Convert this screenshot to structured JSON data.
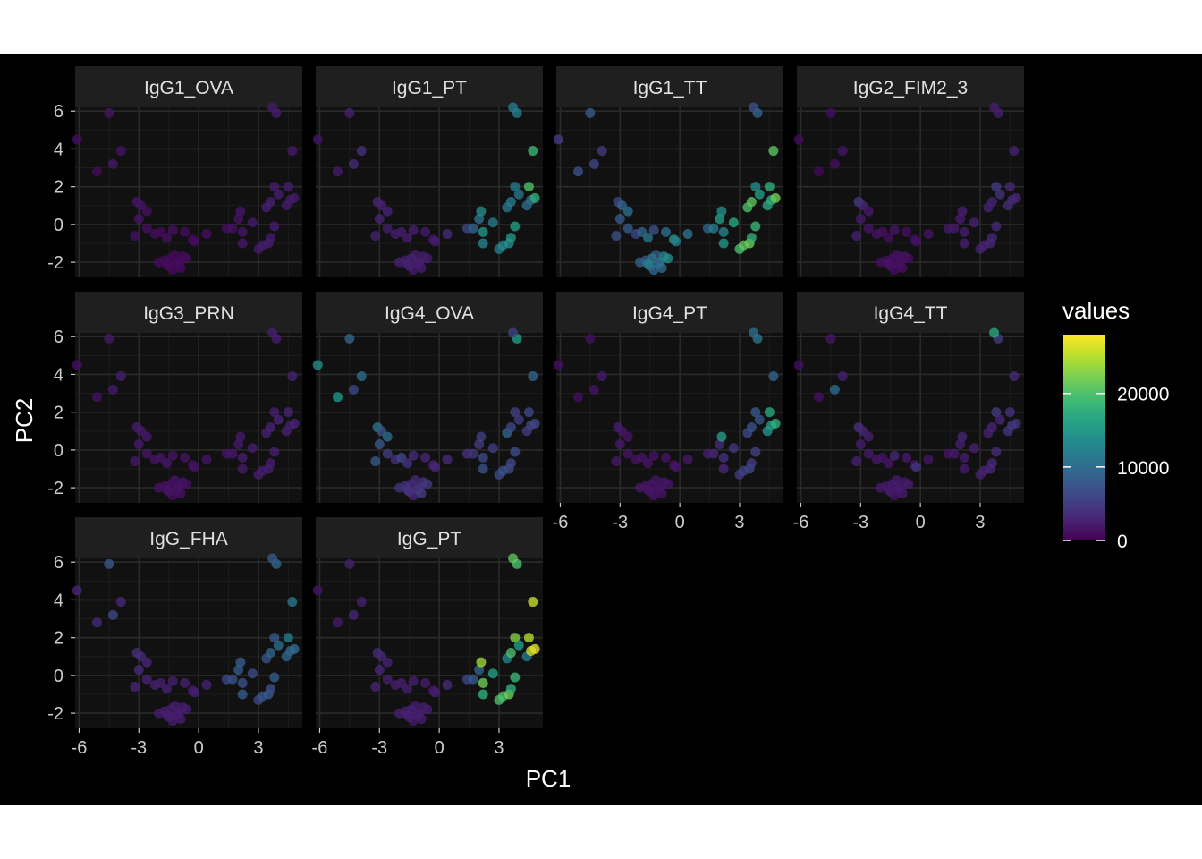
{
  "chart_data": {
    "type": "scatter",
    "title": "",
    "xlabel": "PC1",
    "ylabel": "PC2",
    "facet_layout": "wrap, 4 columns",
    "xlim": [
      -6.2,
      5.2
    ],
    "ylim": [
      -2.8,
      6.2
    ],
    "x_ticks": [
      -6,
      -3,
      0,
      3
    ],
    "x_tick_labels": [
      "-6",
      "-3",
      "0",
      "3"
    ],
    "y_ticks": [
      -2,
      0,
      2,
      4,
      6
    ],
    "y_tick_labels": [
      "-2",
      "0",
      "2",
      "4",
      "6"
    ],
    "grid": true,
    "theme": "dark",
    "legend": {
      "title": "values",
      "placement": "right",
      "range": [
        0,
        28000
      ],
      "ticks": [
        0,
        10000,
        20000
      ],
      "tick_labels": [
        "0",
        "10000",
        "20000"
      ],
      "colormap": "viridis"
    },
    "points": [
      [
        -6.1,
        4.5
      ],
      [
        -5.1,
        2.8
      ],
      [
        -4.5,
        5.9
      ],
      [
        -4.3,
        3.2
      ],
      [
        -3.9,
        3.9
      ],
      [
        -3.1,
        1.2
      ],
      [
        -3.0,
        0.3
      ],
      [
        -3.2,
        -0.6
      ],
      [
        -2.9,
        1.0
      ],
      [
        -2.6,
        0.7
      ],
      [
        -2.6,
        -0.2
      ],
      [
        -2.2,
        -0.5
      ],
      [
        -1.9,
        -0.4
      ],
      [
        -1.6,
        -0.7
      ],
      [
        -1.3,
        -0.3
      ],
      [
        -2.0,
        -2.0
      ],
      [
        -1.7,
        -1.9
      ],
      [
        -1.5,
        -2.2
      ],
      [
        -1.3,
        -2.4
      ],
      [
        -1.2,
        -1.6
      ],
      [
        -1.0,
        -2.0
      ],
      [
        -0.8,
        -1.7
      ],
      [
        -1.4,
        -1.8
      ],
      [
        -1.1,
        -2.1
      ],
      [
        -0.9,
        -2.3
      ],
      [
        -0.6,
        -1.8
      ],
      [
        -1.6,
        -2.1
      ],
      [
        -0.7,
        -0.4
      ],
      [
        -0.3,
        -0.8
      ],
      [
        -0.2,
        -0.9
      ],
      [
        0.4,
        -0.5
      ],
      [
        1.4,
        -0.2
      ],
      [
        1.7,
        -0.2
      ],
      [
        2.0,
        0.3
      ],
      [
        2.1,
        0.7
      ],
      [
        2.2,
        -0.4
      ],
      [
        2.2,
        -1.0
      ],
      [
        2.7,
        0.1
      ],
      [
        3.0,
        -1.3
      ],
      [
        3.2,
        -1.1
      ],
      [
        3.5,
        -1.0
      ],
      [
        3.6,
        -0.7
      ],
      [
        3.8,
        -0.1
      ],
      [
        3.4,
        0.9
      ],
      [
        3.6,
        1.2
      ],
      [
        3.8,
        2.0
      ],
      [
        4.0,
        1.6
      ],
      [
        4.4,
        1.0
      ],
      [
        4.6,
        1.3
      ],
      [
        4.8,
        1.4
      ],
      [
        3.9,
        5.9
      ],
      [
        4.7,
        3.9
      ],
      [
        4.5,
        2.0
      ],
      [
        3.7,
        6.2
      ]
    ],
    "panels": [
      {
        "name": "IgG1_OVA",
        "values": [
          1200,
          800,
          1500,
          1800,
          1400,
          1700,
          1500,
          1300,
          1600,
          1200,
          1100,
          1000,
          900,
          1200,
          1100,
          900,
          800,
          900,
          700,
          800,
          800,
          900,
          700,
          800,
          900,
          800,
          700,
          1000,
          800,
          900,
          1100,
          1200,
          1300,
          1500,
          1600,
          1700,
          1800,
          1900,
          2000,
          2200,
          2400,
          2100,
          2300,
          2500,
          2600,
          2200,
          2400,
          2000,
          1900,
          2100,
          2200,
          2100,
          2300,
          2000
        ]
      },
      {
        "name": "IgG1_PT",
        "values": [
          1500,
          2000,
          2500,
          3500,
          4000,
          3000,
          2800,
          2600,
          2500,
          2700,
          2400,
          2300,
          2200,
          2300,
          2200,
          2600,
          2400,
          2800,
          2100,
          2300,
          2500,
          2200,
          2600,
          2400,
          2300,
          2200,
          2500,
          2100,
          2000,
          2300,
          3500,
          6000,
          9000,
          11000,
          14000,
          15000,
          13000,
          12000,
          12000,
          13000,
          14000,
          15000,
          16000,
          11000,
          12000,
          12000,
          11000,
          10000,
          10000,
          18000,
          12000,
          19000,
          20000,
          12000
        ]
      },
      {
        "name": "IgG1_TT",
        "values": [
          5000,
          7000,
          8000,
          6000,
          5000,
          6000,
          8000,
          7000,
          9000,
          10000,
          8000,
          6000,
          9000,
          11000,
          7000,
          9000,
          8000,
          10000,
          9000,
          8000,
          12000,
          13000,
          11000,
          9000,
          10000,
          14000,
          12000,
          10000,
          15000,
          12000,
          11000,
          9000,
          12000,
          16000,
          14000,
          13000,
          15000,
          17000,
          20000,
          21000,
          22000,
          18000,
          19000,
          20000,
          21000,
          14000,
          16000,
          17000,
          18000,
          22000,
          9000,
          21000,
          18000,
          7000
        ]
      },
      {
        "name": "IgG2_FIM2_3",
        "values": [
          800,
          600,
          1000,
          1200,
          1500,
          5000,
          2000,
          2500,
          3000,
          1800,
          1500,
          1400,
          1300,
          1200,
          1600,
          1200,
          1100,
          1300,
          1000,
          1400,
          1200,
          1500,
          1100,
          1300,
          1200,
          1000,
          1400,
          1200,
          1100,
          1300,
          1500,
          1800,
          2000,
          2200,
          2500,
          2400,
          2300,
          2600,
          2700,
          2800,
          2900,
          3000,
          3100,
          2600,
          2700,
          5000,
          4000,
          3500,
          3200,
          2900,
          2500,
          2700,
          3000,
          2200
        ]
      },
      {
        "name": "IgG3_PRN",
        "values": [
          1200,
          1300,
          1800,
          2000,
          2500,
          2200,
          2000,
          1800,
          2100,
          1900,
          1700,
          1600,
          1500,
          1700,
          1600,
          1400,
          1300,
          1500,
          1200,
          1400,
          1300,
          1500,
          1200,
          1400,
          1300,
          1200,
          1400,
          1500,
          1300,
          1400,
          1600,
          1700,
          1800,
          1900,
          2000,
          2200,
          2100,
          2300,
          2400,
          2200,
          2500,
          2300,
          2400,
          2600,
          2700,
          2500,
          2800,
          2600,
          2500,
          2700,
          2300,
          2600,
          2800,
          2400
        ]
      },
      {
        "name": "IgG4_OVA",
        "values": [
          14000,
          15000,
          9000,
          6000,
          10000,
          11000,
          8000,
          8000,
          7000,
          10000,
          5000,
          4000,
          6000,
          4000,
          3500,
          4000,
          4000,
          5000,
          3500,
          3500,
          4000,
          4500,
          3500,
          4000,
          5000,
          4500,
          4000,
          3000,
          3000,
          3000,
          3500,
          4000,
          4500,
          5000,
          5500,
          6000,
          7000,
          5000,
          6000,
          7000,
          6500,
          6000,
          6500,
          9000,
          6000,
          5500,
          5000,
          5000,
          6000,
          6000,
          16000,
          9000,
          6000,
          5500
        ]
      },
      {
        "name": "IgG4_PT",
        "values": [
          1000,
          1100,
          1200,
          1500,
          2000,
          2500,
          2000,
          1800,
          1700,
          1600,
          1500,
          1400,
          1600,
          1500,
          1400,
          1800,
          1600,
          1700,
          1500,
          1600,
          1500,
          1700,
          1600,
          1500,
          1400,
          1700,
          1600,
          1500,
          1400,
          1500,
          1800,
          2500,
          3000,
          3500,
          16000,
          4000,
          3000,
          4500,
          5000,
          5500,
          6000,
          5000,
          5500,
          6000,
          7000,
          8000,
          7500,
          15000,
          16000,
          18000,
          11000,
          9000,
          17000,
          10000
        ]
      },
      {
        "name": "IgG4_TT",
        "values": [
          1000,
          1200,
          1500,
          10000,
          2500,
          4000,
          2000,
          2500,
          3000,
          2500,
          2000,
          1800,
          1600,
          1700,
          3000,
          2000,
          1800,
          2500,
          1600,
          2200,
          2000,
          1900,
          2300,
          2100,
          2000,
          2200,
          1800,
          2100,
          1900,
          4000,
          1500,
          1600,
          2000,
          2500,
          3000,
          2200,
          2000,
          2500,
          2600,
          2800,
          3000,
          3200,
          3400,
          2600,
          2800,
          5000,
          3000,
          4500,
          5000,
          4000,
          5000,
          3500,
          4000,
          17000
        ]
      },
      {
        "name": "IgG_FHA",
        "values": [
          3000,
          3500,
          8000,
          6000,
          3500,
          4000,
          3500,
          3000,
          3500,
          3000,
          2800,
          2600,
          2500,
          2700,
          2600,
          2400,
          2300,
          2500,
          2200,
          2400,
          2300,
          2500,
          2200,
          2400,
          2300,
          2200,
          2400,
          2500,
          2300,
          2400,
          2600,
          6000,
          7000,
          8000,
          8500,
          7000,
          8000,
          6500,
          6000,
          7500,
          8000,
          7000,
          8500,
          7000,
          9000,
          8000,
          10000,
          9000,
          9500,
          10000,
          9000,
          11000,
          12000,
          8000
        ]
      },
      {
        "name": "IgG_PT",
        "values": [
          1500,
          2000,
          2500,
          3000,
          2500,
          3500,
          3000,
          2800,
          3000,
          2600,
          2500,
          2400,
          2300,
          2500,
          2400,
          2600,
          2400,
          2800,
          2100,
          2300,
          2500,
          2200,
          2600,
          2400,
          2300,
          2200,
          2500,
          2200,
          2100,
          2400,
          3500,
          6000,
          8000,
          9000,
          24000,
          22000,
          18000,
          16000,
          20000,
          20000,
          22000,
          18000,
          19000,
          13000,
          20000,
          23000,
          16000,
          12000,
          26000,
          27000,
          20000,
          26000,
          25000,
          21000
        ]
      }
    ]
  }
}
